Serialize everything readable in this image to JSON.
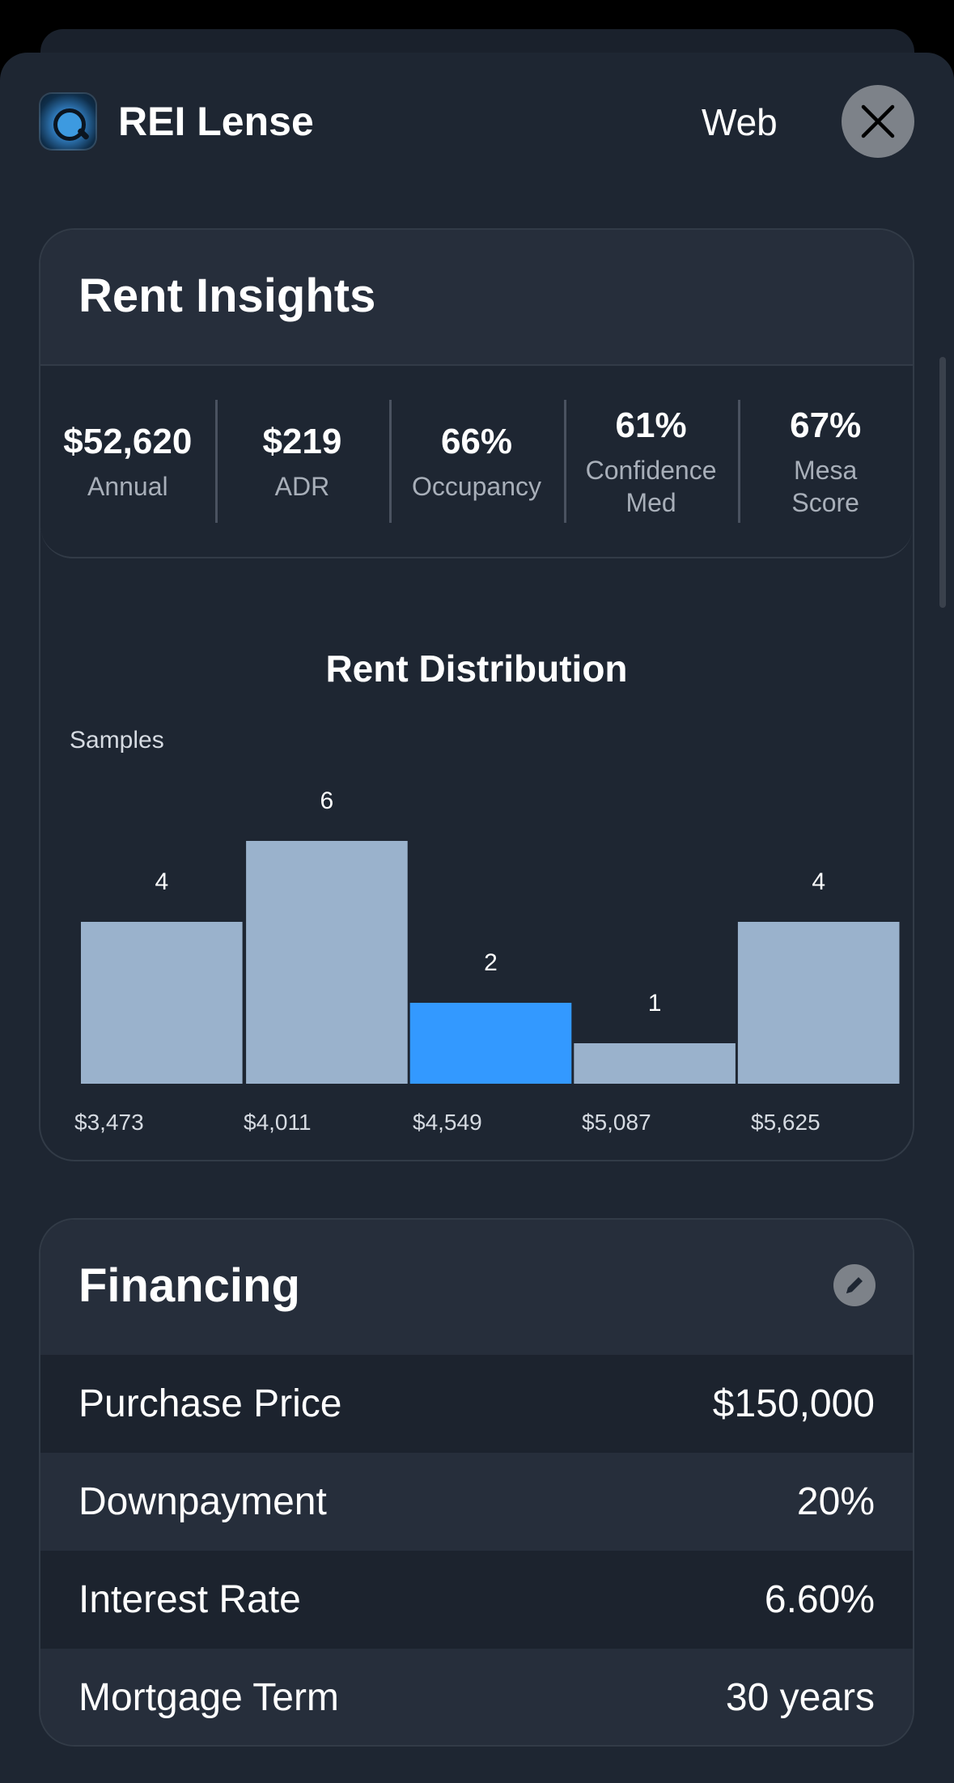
{
  "header": {
    "app_name": "REI Lense",
    "web_label": "Web",
    "icon_name": "app-logo-icon",
    "close_icon": "close-icon"
  },
  "rent_insights": {
    "title": "Rent Insights",
    "stats": [
      {
        "value": "$52,620",
        "label": "Annual"
      },
      {
        "value": "$219",
        "label": "ADR"
      },
      {
        "value": "66%",
        "label": "Occupancy"
      },
      {
        "value": "61%",
        "label": "Confidence\nMed"
      },
      {
        "value": "67%",
        "label": "Mesa\nScore"
      }
    ]
  },
  "chart_data": {
    "type": "bar",
    "title": "Rent Distribution",
    "ylabel": "Samples",
    "categories": [
      "$3,473",
      "$4,011",
      "$4,549",
      "$5,087",
      "$5,625"
    ],
    "values": [
      4,
      6,
      2,
      1,
      4
    ],
    "highlight_index": 2,
    "ylim": [
      0,
      6
    ],
    "colors": {
      "bar": "#9ab2cc",
      "highlight": "#3399ff"
    },
    "grid": false,
    "legend": "none"
  },
  "financing": {
    "title": "Financing",
    "edit_icon": "pencil-icon",
    "rows": [
      {
        "label": "Purchase Price",
        "value": "$150,000"
      },
      {
        "label": "Downpayment",
        "value": "20%"
      },
      {
        "label": "Interest Rate",
        "value": "6.60%"
      },
      {
        "label": "Mortgage Term",
        "value": "30 years"
      }
    ]
  }
}
